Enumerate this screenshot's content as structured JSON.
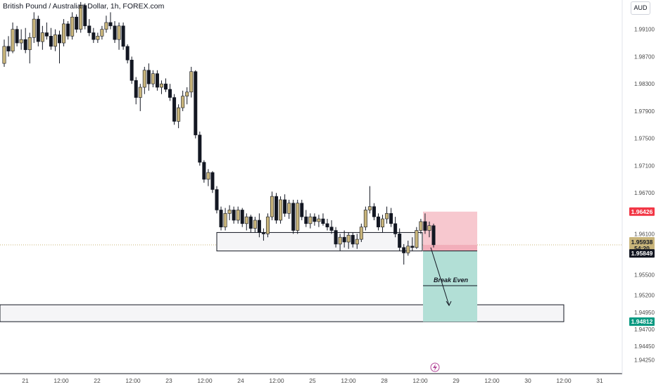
{
  "header": {
    "title": "British Pound / Australian Dollar, 1h, FOREX.com",
    "currency_button": "AUD"
  },
  "colors": {
    "up_candle": "#c8b47a",
    "down_candle": "#131722",
    "stop_zone": "#f7c5cc",
    "target_zone": "#b2dfd6",
    "stop_badge": "#f23645",
    "target_badge": "#089981",
    "current_badge": "#c8b47a",
    "entry_badge": "#131722",
    "zone_box_fill": "#f5f5f7"
  },
  "chart_data": {
    "type": "candlestick",
    "y_axis": {
      "ticks": [
        "1.99100",
        "1.98700",
        "1.98300",
        "1.97900",
        "1.97500",
        "1.97100",
        "1.96700",
        "1.96100",
        "1.95500",
        "1.95200",
        "1.94950",
        "1.94700",
        "1.94450",
        "1.94250"
      ],
      "ylim": [
        1.9405,
        1.9953
      ]
    },
    "x_axis": {
      "ticks": [
        "21",
        "12:00",
        "22",
        "12:00",
        "23",
        "12:00",
        "24",
        "12:00",
        "25",
        "12:00",
        "28",
        "12:00",
        "29",
        "12:00",
        "30",
        "12:00",
        "31"
      ]
    },
    "price_labels": {
      "stop": "1.96426",
      "current_price": "1.95938",
      "countdown": "54:20",
      "entry": "1.95849",
      "target": "1.94812"
    },
    "annotation": "Break Even",
    "levels": {
      "current": 1.95938,
      "entry": 1.95849,
      "stop": 1.96426,
      "target": 1.94812,
      "break_even": 1.9534,
      "support_zone": [
        1.95849,
        1.9612
      ],
      "lower_zone": [
        1.94812,
        1.9506
      ]
    },
    "candles": [
      [
        1.986,
        1.9895,
        1.9855,
        1.9885
      ],
      [
        1.9885,
        1.99,
        1.987,
        1.9878
      ],
      [
        1.9878,
        1.992,
        1.9875,
        1.991
      ],
      [
        1.991,
        1.9915,
        1.9885,
        1.989
      ],
      [
        1.989,
        1.991,
        1.988,
        1.9895
      ],
      [
        1.9895,
        1.9912,
        1.9875,
        1.988
      ],
      [
        1.988,
        1.9905,
        1.986,
        1.9898
      ],
      [
        1.9898,
        1.9935,
        1.989,
        1.9925
      ],
      [
        1.9925,
        1.993,
        1.9885,
        1.9892
      ],
      [
        1.9892,
        1.9915,
        1.988,
        1.9905
      ],
      [
        1.9905,
        1.992,
        1.9895,
        1.99
      ],
      [
        1.99,
        1.9912,
        1.988,
        1.9885
      ],
      [
        1.9885,
        1.991,
        1.9878,
        1.9902
      ],
      [
        1.9902,
        1.9908,
        1.986,
        1.989
      ],
      [
        1.989,
        1.9925,
        1.9885,
        1.9918
      ],
      [
        1.9918,
        1.9922,
        1.9895,
        1.99
      ],
      [
        1.99,
        1.9935,
        1.9895,
        1.9928
      ],
      [
        1.9928,
        1.9932,
        1.9905,
        1.991
      ],
      [
        1.991,
        1.995,
        1.9905,
        1.9945
      ],
      [
        1.9945,
        1.9948,
        1.991,
        1.9915
      ],
      [
        1.9915,
        1.9925,
        1.99,
        1.9905
      ],
      [
        1.9905,
        1.9912,
        1.989,
        1.9895
      ],
      [
        1.9895,
        1.9905,
        1.989,
        1.99
      ],
      [
        1.99,
        1.9915,
        1.9895,
        1.991
      ],
      [
        1.991,
        1.993,
        1.9905,
        1.992
      ],
      [
        1.992,
        1.9935,
        1.991,
        1.9915
      ],
      [
        1.9915,
        1.9922,
        1.989,
        1.9895
      ],
      [
        1.9895,
        1.992,
        1.988,
        1.9915
      ],
      [
        1.9915,
        1.992,
        1.988,
        1.9885
      ],
      [
        1.9885,
        1.9888,
        1.986,
        1.9865
      ],
      [
        1.9865,
        1.987,
        1.983,
        1.9835
      ],
      [
        1.9835,
        1.984,
        1.98,
        1.981
      ],
      [
        1.981,
        1.983,
        1.979,
        1.9825
      ],
      [
        1.9825,
        1.9855,
        1.9815,
        1.985
      ],
      [
        1.985,
        1.986,
        1.982,
        1.983
      ],
      [
        1.983,
        1.985,
        1.9825,
        1.9845
      ],
      [
        1.9845,
        1.985,
        1.982,
        1.9825
      ],
      [
        1.9825,
        1.9835,
        1.9815,
        1.983
      ],
      [
        1.983,
        1.9838,
        1.9818,
        1.9822
      ],
      [
        1.9822,
        1.983,
        1.9805,
        1.981
      ],
      [
        1.981,
        1.9815,
        1.977,
        1.9775
      ],
      [
        1.9775,
        1.98,
        1.9765,
        1.9795
      ],
      [
        1.9795,
        1.982,
        1.979,
        1.9812
      ],
      [
        1.9812,
        1.9825,
        1.98,
        1.9818
      ],
      [
        1.9818,
        1.9855,
        1.981,
        1.9848
      ],
      [
        1.9848,
        1.985,
        1.975,
        1.9755
      ],
      [
        1.9755,
        1.976,
        1.971,
        1.9715
      ],
      [
        1.9715,
        1.9718,
        1.9685,
        1.969
      ],
      [
        1.969,
        1.9705,
        1.968,
        1.97
      ],
      [
        1.97,
        1.9702,
        1.967,
        1.9675
      ],
      [
        1.9675,
        1.968,
        1.964,
        1.9645
      ],
      [
        1.9645,
        1.965,
        1.9615,
        1.962
      ],
      [
        1.962,
        1.9648,
        1.9615,
        1.964
      ],
      [
        1.964,
        1.9652,
        1.963,
        1.9645
      ],
      [
        1.9645,
        1.965,
        1.9625,
        1.963
      ],
      [
        1.963,
        1.965,
        1.9625,
        1.9645
      ],
      [
        1.9645,
        1.9648,
        1.962,
        1.9625
      ],
      [
        1.9625,
        1.964,
        1.9615,
        1.9635
      ],
      [
        1.9635,
        1.9638,
        1.9612,
        1.9618
      ],
      [
        1.9618,
        1.9635,
        1.9612,
        1.963
      ],
      [
        1.963,
        1.964,
        1.9605,
        1.9612
      ],
      [
        1.9612,
        1.9618,
        1.96,
        1.961
      ],
      [
        1.961,
        1.964,
        1.9605,
        1.9635
      ],
      [
        1.9635,
        1.9672,
        1.963,
        1.9665
      ],
      [
        1.9665,
        1.967,
        1.9625,
        1.963
      ],
      [
        1.963,
        1.9665,
        1.9625,
        1.966
      ],
      [
        1.966,
        1.9668,
        1.9635,
        1.964
      ],
      [
        1.964,
        1.966,
        1.9632,
        1.9655
      ],
      [
        1.9655,
        1.966,
        1.961,
        1.9615
      ],
      [
        1.9615,
        1.966,
        1.961,
        1.9655
      ],
      [
        1.9655,
        1.966,
        1.963,
        1.9635
      ],
      [
        1.9635,
        1.9645,
        1.962,
        1.9625
      ],
      [
        1.9625,
        1.964,
        1.9618,
        1.9635
      ],
      [
        1.9635,
        1.964,
        1.9622,
        1.9628
      ],
      [
        1.9628,
        1.9638,
        1.962,
        1.9632
      ],
      [
        1.9632,
        1.964,
        1.9622,
        1.9625
      ],
      [
        1.9625,
        1.9632,
        1.9615,
        1.962
      ],
      [
        1.962,
        1.963,
        1.961,
        1.9615
      ],
      [
        1.9615,
        1.962,
        1.959,
        1.9595
      ],
      [
        1.9595,
        1.961,
        1.9585,
        1.9605
      ],
      [
        1.9605,
        1.9615,
        1.959,
        1.9598
      ],
      [
        1.9598,
        1.9612,
        1.9588,
        1.9608
      ],
      [
        1.9608,
        1.9612,
        1.959,
        1.9595
      ],
      [
        1.9595,
        1.961,
        1.9588,
        1.9602
      ],
      [
        1.9602,
        1.9625,
        1.9598,
        1.962
      ],
      [
        1.962,
        1.965,
        1.9615,
        1.9645
      ],
      [
        1.9645,
        1.968,
        1.964,
        1.965
      ],
      [
        1.965,
        1.9655,
        1.963,
        1.9635
      ],
      [
        1.9635,
        1.964,
        1.9615,
        1.962
      ],
      [
        1.962,
        1.9638,
        1.9612,
        1.9632
      ],
      [
        1.9632,
        1.965,
        1.9625,
        1.964
      ],
      [
        1.964,
        1.9648,
        1.962,
        1.9625
      ],
      [
        1.9625,
        1.9635,
        1.9605,
        1.961
      ],
      [
        1.961,
        1.9618,
        1.9585,
        1.959
      ],
      [
        1.959,
        1.9595,
        1.9565,
        1.9582
      ],
      [
        1.9582,
        1.96,
        1.9578,
        1.9592
      ],
      [
        1.9592,
        1.9605,
        1.9585,
        1.959
      ],
      [
        1.959,
        1.962,
        1.9588,
        1.9615
      ],
      [
        1.9615,
        1.9632,
        1.961,
        1.9628
      ],
      [
        1.9628,
        1.964,
        1.961,
        1.9615
      ],
      [
        1.9615,
        1.9628,
        1.9605,
        1.9622
      ],
      [
        1.9622,
        1.9625,
        1.959,
        1.9594
      ]
    ]
  }
}
